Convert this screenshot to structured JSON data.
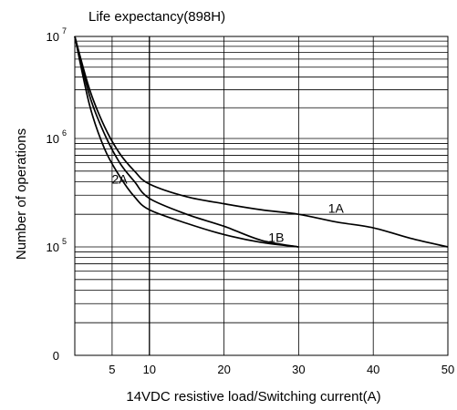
{
  "chart_data": {
    "type": "line",
    "title": "Life expectancy(898H)",
    "xlabel": "14VDC resistive load/Switching current(A)",
    "ylabel": "Number of operations",
    "xlim": [
      0,
      50
    ],
    "x_ticks": [
      5,
      10,
      20,
      30,
      40,
      50
    ],
    "x_tick_labels": [
      "5",
      "10",
      "20",
      "30",
      "40",
      "50"
    ],
    "y_ticks": [
      {
        "base": "0",
        "exp": ""
      },
      {
        "base": "10",
        "exp": "5"
      },
      {
        "base": "10",
        "exp": "6"
      },
      {
        "base": "10",
        "exp": "7"
      }
    ],
    "yscale": "log (bottom decade compressed to 0)",
    "ylim": [
      0,
      10000000
    ],
    "grid": true,
    "series": [
      {
        "name": "1A",
        "x": [
          0,
          2,
          4,
          6,
          8,
          10,
          15,
          20,
          25,
          30,
          35,
          40,
          45,
          50
        ],
        "y": [
          10000000,
          3000000,
          1300000,
          730000,
          500000,
          380000,
          290000,
          250000,
          220000,
          200000,
          170000,
          150000,
          120000,
          100000
        ]
      },
      {
        "name": "1B",
        "x": [
          0,
          2,
          4,
          6,
          8,
          10,
          15,
          20,
          25,
          30
        ],
        "y": [
          10000000,
          2600000,
          1100000,
          600000,
          400000,
          280000,
          200000,
          155000,
          115000,
          100000
        ]
      },
      {
        "name": "2A",
        "x": [
          0,
          2,
          4,
          6,
          8,
          10,
          15,
          20,
          25,
          30
        ],
        "y": [
          10000000,
          2100000,
          800000,
          450000,
          290000,
          220000,
          165000,
          130000,
          110000,
          100000
        ]
      }
    ]
  }
}
